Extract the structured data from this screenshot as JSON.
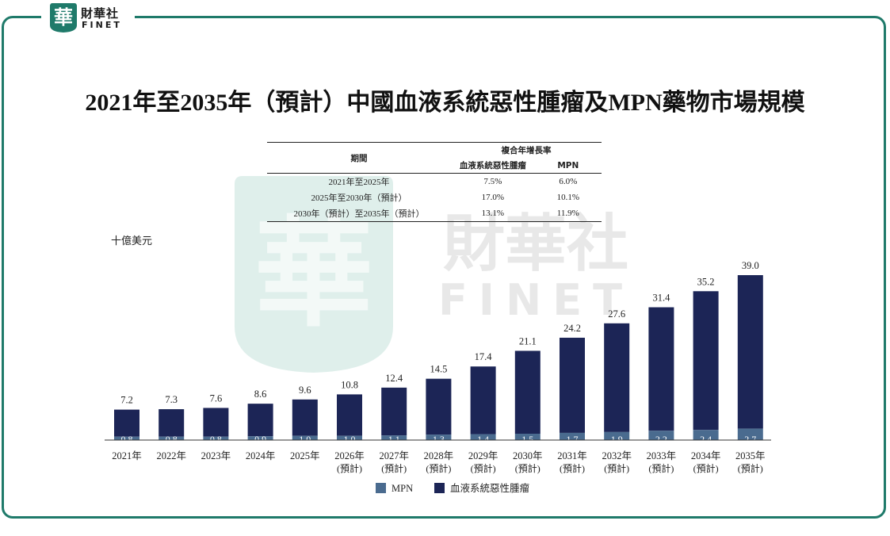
{
  "header": {
    "logo_cn": "財華社",
    "logo_en": "FINET",
    "seal_char": "華"
  },
  "watermark": {
    "cn": "財華社",
    "en": "FINET",
    "seal_char": "華"
  },
  "cagr_table": {
    "col_period": "期間",
    "col_cagr": "複合年增長率",
    "col_blood": "血液系統惡性腫瘤",
    "col_mpn": "MPN",
    "rows": [
      {
        "period": "2021年至2025年",
        "blood": "7.5%",
        "mpn": "6.0%"
      },
      {
        "period": "2025年至2030年（預計）",
        "blood": "17.0%",
        "mpn": "10.1%"
      },
      {
        "period": "2030年（預計）至2035年（預計）",
        "blood": "13.1%",
        "mpn": "11.9%"
      }
    ]
  },
  "colors": {
    "frame": "#1f7a6a",
    "mpn": "#4a6b8f",
    "blood": "#1c2556"
  },
  "chart_data": {
    "type": "bar",
    "title": "2021年至2035年（預計）中國血液系統惡性腫瘤及MPN藥物市場規模",
    "ylabel": "十億美元",
    "ylim": [
      0,
      39.0
    ],
    "categories": [
      "2021年",
      "2022年",
      "2023年",
      "2024年",
      "2025年",
      "2026年",
      "2027年",
      "2028年",
      "2029年",
      "2030年",
      "2031年",
      "2032年",
      "2033年",
      "2034年",
      "2035年"
    ],
    "category_sub": [
      "",
      "",
      "",
      "",
      "",
      "(預計)",
      "(預計)",
      "(預計)",
      "(預計)",
      "(預計)",
      "(預計)",
      "(預計)",
      "(預計)",
      "(預計)",
      "(預計)"
    ],
    "series": [
      {
        "name": "MPN",
        "values": [
          0.8,
          0.8,
          0.8,
          0.9,
          1.0,
          1.0,
          1.1,
          1.3,
          1.4,
          1.5,
          1.7,
          1.9,
          2.2,
          2.4,
          2.7
        ]
      },
      {
        "name": "血液系統惡性腫瘤",
        "values": [
          7.2,
          7.3,
          7.6,
          8.6,
          9.6,
          10.8,
          12.4,
          14.5,
          17.4,
          21.1,
          24.2,
          27.6,
          31.4,
          35.2,
          39.0
        ]
      }
    ],
    "mpn_labels": [
      "0.8",
      "0.8",
      "0.8",
      "0.9",
      "1.0",
      "1.0",
      "1.1",
      "1.3",
      "1.4",
      "1.5",
      "1.7",
      "1.9",
      "2.2",
      "2.4",
      "2.7"
    ],
    "total_labels": [
      "7.2",
      "7.3",
      "7.6",
      "8.6",
      "9.6",
      "10.8",
      "12.4",
      "14.5",
      "17.4",
      "21.1",
      "24.2",
      "27.6",
      "31.4",
      "35.2",
      "39.0"
    ],
    "legend": [
      {
        "label": "MPN",
        "color": "#4a6b8f"
      },
      {
        "label": "血液系統惡性腫瘤",
        "color": "#1c2556"
      }
    ],
    "legend_position": "bottom",
    "grid": false
  }
}
